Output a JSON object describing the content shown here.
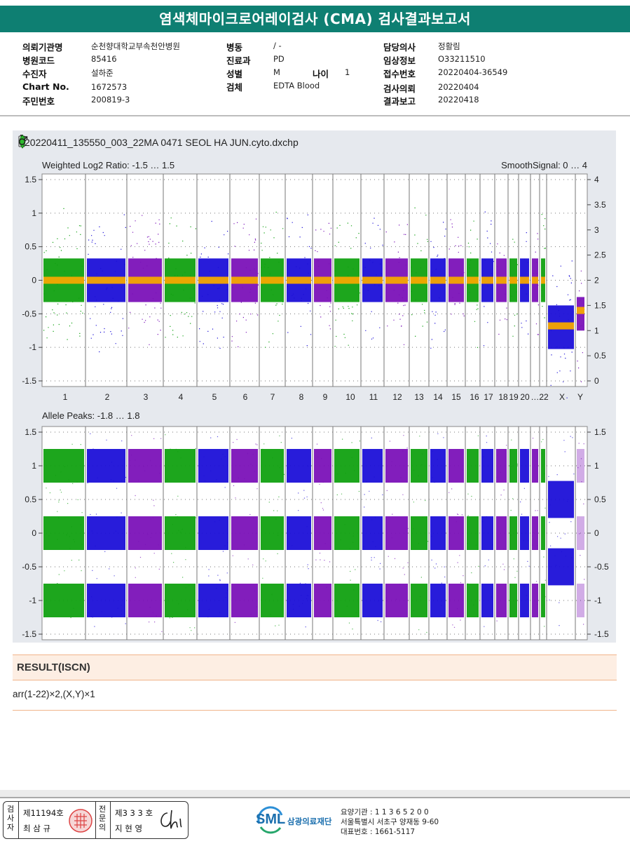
{
  "report_title": "염색체마이크로어레이검사 (CMA) 검사결과보고서",
  "info": {
    "col1": [
      {
        "label": "의뢰기관명",
        "value": "순천향대학교부속천안병원"
      },
      {
        "label": "병원코드",
        "value": "85416"
      },
      {
        "label": "수진자",
        "value": "설하준"
      },
      {
        "label": "Chart No.",
        "value": "1672573"
      },
      {
        "label": "주민번호",
        "value": "200819-3"
      }
    ],
    "col2": [
      {
        "label": "병동",
        "value": "/ -"
      },
      {
        "label": "진료과",
        "value": "PD"
      },
      {
        "label": "성별",
        "value": "M"
      },
      {
        "label": "검체",
        "value": "EDTA Blood"
      }
    ],
    "age": {
      "label": "나이",
      "value": "1"
    },
    "col3": [
      {
        "label": "담당의사",
        "value": "정활림"
      },
      {
        "label": "임상정보",
        "value": "O33211510"
      },
      {
        "label": "접수번호",
        "value": "20220404-36549"
      },
      {
        "label": "검사의뢰",
        "value": "20220404"
      },
      {
        "label": "결과보고",
        "value": "20220418"
      }
    ]
  },
  "plot": {
    "filename": "20220411_135550_003_22MA 0471 SEOL HA JUN.cyto.dxchp",
    "icons": [
      "battery-icon",
      "green-marker-icon",
      "male-symbol-icon"
    ],
    "top_panel": {
      "left_title": "Weighted Log2 Ratio: -1.5 … 1.5",
      "right_title": "SmoothSignal: 0 … 4",
      "left_ticks": [
        "1.5",
        "1",
        "0.5",
        "0",
        "-0.5",
        "-1",
        "-1.5"
      ],
      "right_ticks": [
        "4",
        "3.5",
        "3",
        "2.5",
        "2",
        "1.5",
        "1",
        "0.5",
        "0"
      ]
    },
    "bottom_panel": {
      "left_title": "Allele Peaks: -1.8 … 1.8",
      "left_ticks": [
        "1.5",
        "1",
        "0.5",
        "0",
        "-0.5",
        "-1",
        "-1.5"
      ],
      "right_ticks": [
        "1.5",
        "1",
        "0.5",
        "0",
        "-0.5",
        "-1",
        "-1.5"
      ]
    },
    "chromosome_labels": [
      "1",
      "2",
      "3",
      "4",
      "5",
      "6",
      "7",
      "8",
      "9",
      "10",
      "11",
      "12",
      "13",
      "14",
      "15",
      "16",
      "17",
      "18",
      "19",
      "20",
      "…22",
      "X",
      "Y"
    ],
    "colors": {
      "green": "#11a111",
      "blue": "#1c10d8",
      "purple": "#7b12b8",
      "orange": "#f5a800",
      "panel_bg": "#e6e9ee"
    }
  },
  "result": {
    "header": "RESULT(ISCN)",
    "text": "arr(1-22)×2,(X,Y)×1"
  },
  "footer": {
    "examiner_label": "검사자",
    "examiner_no": "제11194호",
    "examiner_name": "최 삼 규",
    "specialist_label": "전문의",
    "specialist_no": "제3 3 3 호",
    "specialist_name": "지 현 영",
    "org_logo_text": "SML",
    "org_name": "삼광의료재단",
    "address_lines": [
      "요양기관 : 1 1 3 6 5 2 0 0",
      "서울특별시 서초구 양재동 9-60",
      "대표번호 : 1661-5117"
    ]
  }
}
